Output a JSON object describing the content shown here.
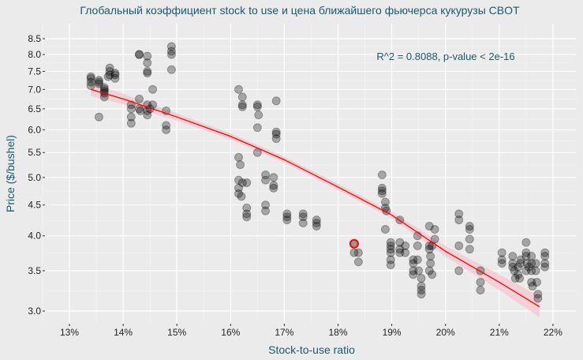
{
  "chart_data": {
    "type": "scatter",
    "title": "Глобальный коэффициент stock to use и цена ближайшего фьючерса кукурузы CBOT",
    "xlabel": "Stock-to-use ratio",
    "ylabel": "Price ($/bushel)",
    "annotation": "R^2 = 0.8088, p-value < 2e-16",
    "xlim": [
      12.6,
      22.5
    ],
    "ylim": [
      2.85,
      9.0
    ],
    "y_scale": "log",
    "x_ticks": [
      13,
      14,
      15,
      16,
      17,
      18,
      19,
      20,
      21,
      22
    ],
    "x_tick_labels": [
      "13%",
      "14%",
      "15%",
      "16%",
      "17%",
      "18%",
      "19%",
      "20%",
      "21%",
      "22%"
    ],
    "y_ticks": [
      3.0,
      3.5,
      4.0,
      4.5,
      5.0,
      5.5,
      6.0,
      6.5,
      7.0,
      7.5,
      8.0,
      8.5
    ],
    "y_tick_labels": [
      "3.0",
      "3.5",
      "4.0",
      "4.5",
      "5.0",
      "5.5",
      "6.0",
      "6.5",
      "7.0",
      "7.5",
      "8.0",
      "8.5"
    ],
    "grid": true,
    "colors": {
      "points": "#000000",
      "fit": "#ff0000",
      "band": "#f4c7cf",
      "highlight": "#ff0000",
      "title": "#1a5a6e"
    },
    "points": [
      [
        13.4,
        7.35
      ],
      [
        13.4,
        7.3
      ],
      [
        13.4,
        7.2
      ],
      [
        13.4,
        7.1
      ],
      [
        13.55,
        7.25
      ],
      [
        13.55,
        7.2
      ],
      [
        13.55,
        7.15
      ],
      [
        13.55,
        6.3
      ],
      [
        13.65,
        7.05
      ],
      [
        13.65,
        6.95
      ],
      [
        13.65,
        6.9
      ],
      [
        13.65,
        6.8
      ],
      [
        13.65,
        7.0
      ],
      [
        13.75,
        7.6
      ],
      [
        13.75,
        7.5
      ],
      [
        13.75,
        7.4
      ],
      [
        13.72,
        7.35
      ],
      [
        13.85,
        7.45
      ],
      [
        13.85,
        7.4
      ],
      [
        13.85,
        7.3
      ],
      [
        14.15,
        6.6
      ],
      [
        14.15,
        6.5
      ],
      [
        14.15,
        6.3
      ],
      [
        14.15,
        6.15
      ],
      [
        14.3,
        8.0
      ],
      [
        14.3,
        8.0
      ],
      [
        14.3,
        6.75
      ],
      [
        14.3,
        6.5
      ],
      [
        14.32,
        6.45
      ],
      [
        14.45,
        7.95
      ],
      [
        14.45,
        7.75
      ],
      [
        14.45,
        7.5
      ],
      [
        14.45,
        7.45
      ],
      [
        14.45,
        6.6
      ],
      [
        14.45,
        6.45
      ],
      [
        14.45,
        6.35
      ],
      [
        14.55,
        7.0
      ],
      [
        14.55,
        6.6
      ],
      [
        14.5,
        6.5
      ],
      [
        14.8,
        6.45
      ],
      [
        14.8,
        6.1
      ],
      [
        14.8,
        6.0
      ],
      [
        14.9,
        8.25
      ],
      [
        14.9,
        8.1
      ],
      [
        14.9,
        8.0
      ],
      [
        14.9,
        7.55
      ],
      [
        16.15,
        7.0
      ],
      [
        16.15,
        5.4
      ],
      [
        16.18,
        5.25
      ],
      [
        16.15,
        4.95
      ],
      [
        16.15,
        4.8
      ],
      [
        16.15,
        4.7
      ],
      [
        16.22,
        6.8
      ],
      [
        16.22,
        6.6
      ],
      [
        16.22,
        6.55
      ],
      [
        16.22,
        4.9
      ],
      [
        16.2,
        4.65
      ],
      [
        16.3,
        4.9
      ],
      [
        16.3,
        4.45
      ],
      [
        16.3,
        4.35
      ],
      [
        16.3,
        4.3
      ],
      [
        16.5,
        6.6
      ],
      [
        16.5,
        6.55
      ],
      [
        16.52,
        6.35
      ],
      [
        16.5,
        6.05
      ],
      [
        16.5,
        5.5
      ],
      [
        16.65,
        5.05
      ],
      [
        16.65,
        4.95
      ],
      [
        16.65,
        4.5
      ],
      [
        16.65,
        4.4
      ],
      [
        16.85,
        6.7
      ],
      [
        16.85,
        5.95
      ],
      [
        16.85,
        5.9
      ],
      [
        16.85,
        5.8
      ],
      [
        16.8,
        5.0
      ],
      [
        16.8,
        4.85
      ],
      [
        16.8,
        4.8
      ],
      [
        17.05,
        4.35
      ],
      [
        17.05,
        4.3
      ],
      [
        17.05,
        4.25
      ],
      [
        17.35,
        4.35
      ],
      [
        17.35,
        4.3
      ],
      [
        17.35,
        4.2
      ],
      [
        17.6,
        4.25
      ],
      [
        17.6,
        4.2
      ],
      [
        17.6,
        4.15
      ],
      [
        18.3,
        3.75
      ],
      [
        18.38,
        3.75
      ],
      [
        18.38,
        3.62
      ],
      [
        18.82,
        5.05
      ],
      [
        18.82,
        4.8
      ],
      [
        18.82,
        4.75
      ],
      [
        18.82,
        4.7
      ],
      [
        18.88,
        4.55
      ],
      [
        18.88,
        4.45
      ],
      [
        18.9,
        4.4
      ],
      [
        18.88,
        4.1
      ],
      [
        18.98,
        3.9
      ],
      [
        18.98,
        3.85
      ],
      [
        18.98,
        3.8
      ],
      [
        18.98,
        3.75
      ],
      [
        18.98,
        3.65
      ],
      [
        18.98,
        3.58
      ],
      [
        19.15,
        4.25
      ],
      [
        19.15,
        3.9
      ],
      [
        19.15,
        3.8
      ],
      [
        19.15,
        3.75
      ],
      [
        19.25,
        3.85
      ],
      [
        19.25,
        3.75
      ],
      [
        19.4,
        3.65
      ],
      [
        19.4,
        3.6
      ],
      [
        19.4,
        3.5
      ],
      [
        19.4,
        3.45
      ],
      [
        19.48,
        4.0
      ],
      [
        19.48,
        3.85
      ],
      [
        19.48,
        3.65
      ],
      [
        19.5,
        3.5
      ],
      [
        19.55,
        3.4
      ],
      [
        19.55,
        3.3
      ],
      [
        19.55,
        3.25
      ],
      [
        19.55,
        3.2
      ],
      [
        19.7,
        4.15
      ],
      [
        19.7,
        3.85
      ],
      [
        19.7,
        3.8
      ],
      [
        19.72,
        3.7
      ],
      [
        19.72,
        3.6
      ],
      [
        19.7,
        3.5
      ],
      [
        19.8,
        4.1
      ],
      [
        19.8,
        3.95
      ],
      [
        19.75,
        3.85
      ],
      [
        19.75,
        3.45
      ],
      [
        20.25,
        4.35
      ],
      [
        20.25,
        4.25
      ],
      [
        20.25,
        3.85
      ],
      [
        20.25,
        3.5
      ],
      [
        20.45,
        4.15
      ],
      [
        20.45,
        4.1
      ],
      [
        20.45,
        3.95
      ],
      [
        20.45,
        3.8
      ],
      [
        20.65,
        3.5
      ],
      [
        20.65,
        3.35
      ],
      [
        20.65,
        3.25
      ],
      [
        21.05,
        3.75
      ],
      [
        21.05,
        3.65
      ],
      [
        21.05,
        3.6
      ],
      [
        21.25,
        3.7
      ],
      [
        21.25,
        3.6
      ],
      [
        21.25,
        3.55
      ],
      [
        21.28,
        3.5
      ],
      [
        21.3,
        3.4
      ],
      [
        21.35,
        3.55
      ],
      [
        21.35,
        3.45
      ],
      [
        21.38,
        3.4
      ],
      [
        21.4,
        3.6
      ],
      [
        21.4,
        3.65
      ],
      [
        21.5,
        3.9
      ],
      [
        21.5,
        3.75
      ],
      [
        21.5,
        3.7
      ],
      [
        21.52,
        3.6
      ],
      [
        21.55,
        3.55
      ],
      [
        21.5,
        3.5
      ],
      [
        21.6,
        3.7
      ],
      [
        21.6,
        3.6
      ],
      [
        21.6,
        3.5
      ],
      [
        21.6,
        3.35
      ],
      [
        21.62,
        3.3
      ],
      [
        21.68,
        3.6
      ],
      [
        21.68,
        3.5
      ],
      [
        21.7,
        3.35
      ],
      [
        21.72,
        3.2
      ],
      [
        21.72,
        3.15
      ],
      [
        21.85,
        3.75
      ],
      [
        21.85,
        3.7
      ],
      [
        21.85,
        3.6
      ],
      [
        21.85,
        3.55
      ]
    ],
    "highlight_point": [
      18.3,
      3.88
    ],
    "fit_line": {
      "x": [
        13.4,
        14,
        15,
        16,
        17,
        18,
        19,
        20,
        21,
        21.75
      ],
      "y": [
        7.0,
        6.75,
        6.3,
        5.85,
        5.35,
        4.82,
        4.33,
        3.77,
        3.35,
        3.05
      ],
      "band_halfwidth_log": [
        0.025,
        0.02,
        0.014,
        0.012,
        0.012,
        0.012,
        0.013,
        0.02,
        0.03,
        0.04
      ]
    }
  }
}
